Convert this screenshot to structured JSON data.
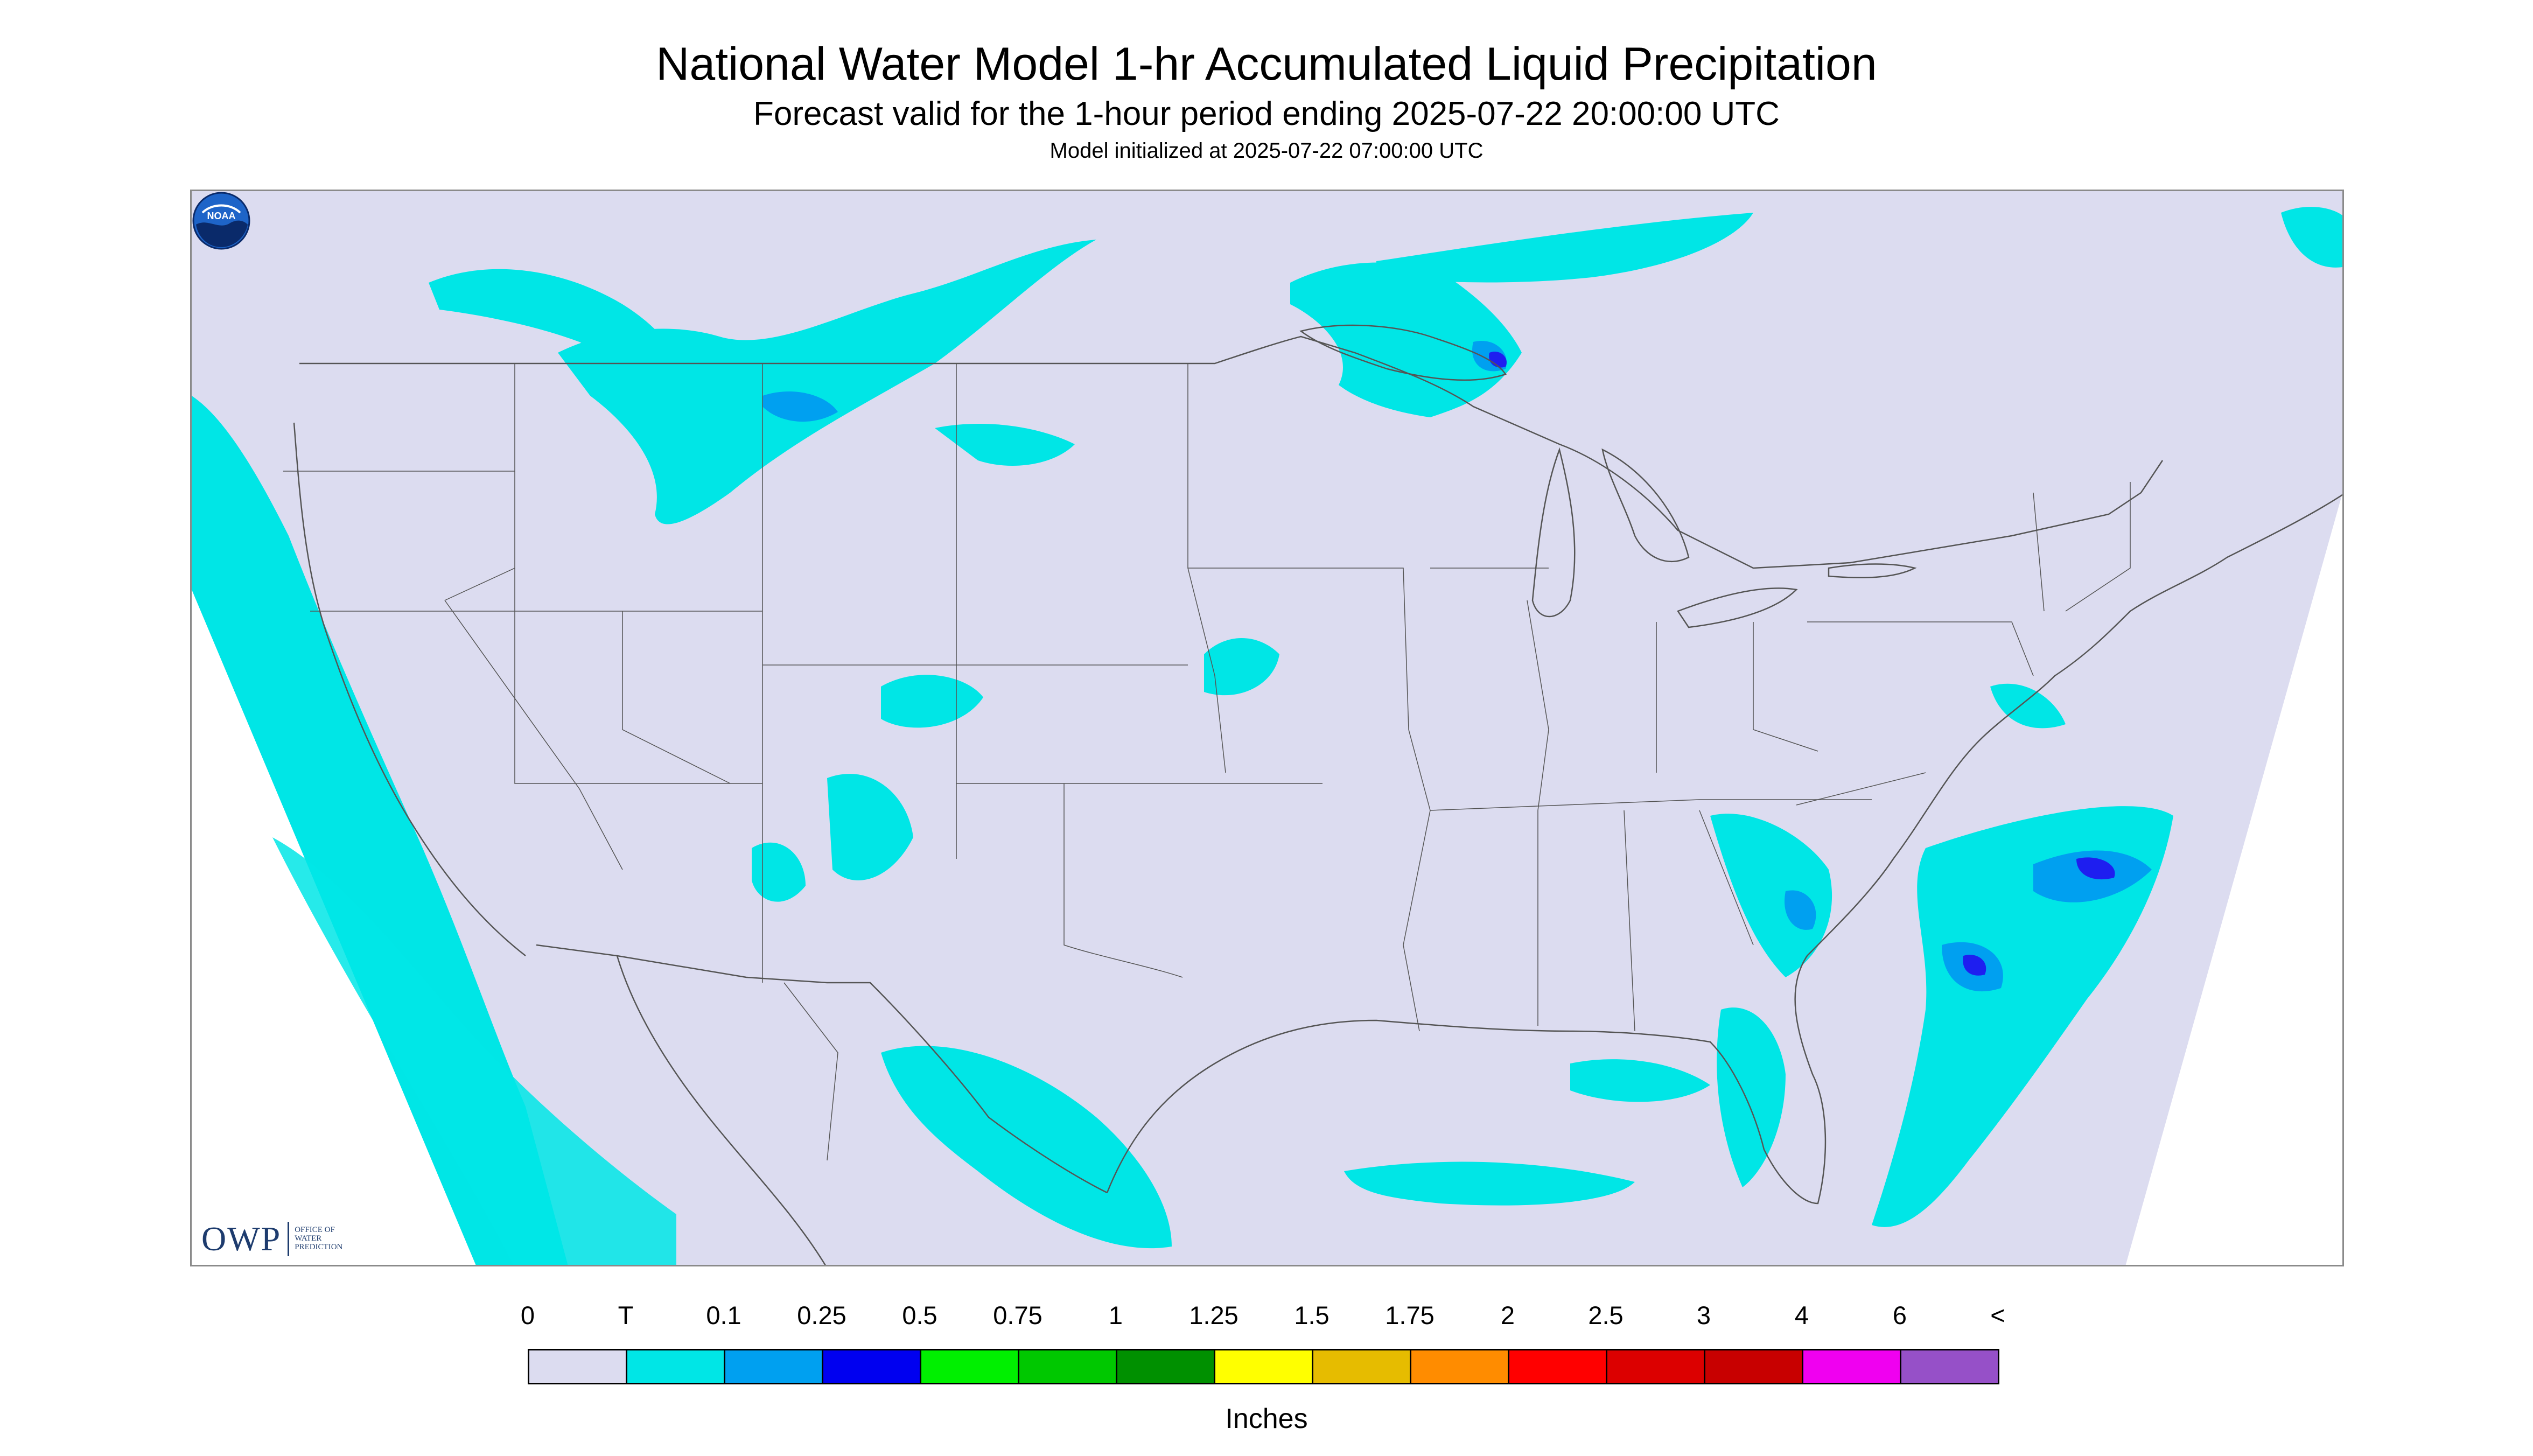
{
  "title": "National Water Model 1-hr Accumulated Liquid Precipitation",
  "subtitle": "Forecast valid for the 1-hour period ending 2025-07-22 20:00:00 UTC",
  "model_init": "Model initialized at 2025-07-22 07:00:00 UTC",
  "owp_logo": {
    "mark": "OWP",
    "text": "OFFICE OF WATER PREDICTION"
  },
  "noaa_logo": {
    "text": "NOAA"
  },
  "colors": {
    "no_data": "#ffffff",
    "background": "#dcdcf0",
    "border_lines": "#555555",
    "light_precip": "#00e6e6",
    "medium_precip": "#00a0f0",
    "heavy_precip": "#1e1ef0",
    "extreme_precip": "#1e3c6e"
  },
  "colorbar": {
    "ticks": [
      "0",
      "T",
      "0.1",
      "0.25",
      "0.5",
      "0.75",
      "1",
      "1.25",
      "1.5",
      "1.75",
      "2",
      "2.5",
      "3",
      "4",
      "6",
      "<"
    ],
    "colors": [
      "#dcdcf0",
      "#00e6e6",
      "#00a0f0",
      "#0000f0",
      "#00f000",
      "#00c800",
      "#009000",
      "#ffff00",
      "#e6bc00",
      "#ff8c00",
      "#ff0000",
      "#dc0000",
      "#c80000",
      "#f000f0",
      "#9650c8"
    ],
    "units": "Inches"
  }
}
